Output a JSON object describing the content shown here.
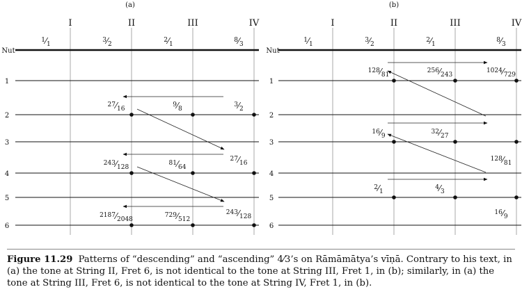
{
  "panels": [
    {
      "label": "(a)",
      "strings": [
        "I",
        "II",
        "III",
        "IV"
      ],
      "open_ratios": [
        "1/1",
        "3/2",
        "2/1",
        "8/3"
      ],
      "frets": [
        "Nut",
        "1",
        "2",
        "3",
        "4",
        "5",
        "6"
      ],
      "tones": [
        {
          "text": "27/16",
          "string": 2,
          "fret": 2
        },
        {
          "text": "9/8",
          "string": 3,
          "fret": 2
        },
        {
          "text": "3/2",
          "string": 4,
          "fret": 2
        },
        {
          "text": "27/16",
          "string": 4,
          "fret": 4,
          "note": "label above fret 3"
        },
        {
          "text": "243/128",
          "string": 2,
          "fret": 4
        },
        {
          "text": "81/64",
          "string": 3,
          "fret": 4
        },
        {
          "text": "243/128",
          "string": 4,
          "fret": 6,
          "note": "label above fret 5"
        },
        {
          "text": "2187/2048",
          "string": 2,
          "fret": 6
        },
        {
          "text": "729/512",
          "string": 3,
          "fret": 6
        }
      ]
    },
    {
      "label": "(b)",
      "strings": [
        "I",
        "II",
        "III",
        "IV"
      ],
      "open_ratios": [
        "1/1",
        "3/2",
        "2/1",
        "8/3"
      ],
      "frets": [
        "Nut",
        "1",
        "2",
        "3",
        "4",
        "5",
        "6"
      ],
      "tones": [
        {
          "text": "128/81",
          "string": 2,
          "fret": 1
        },
        {
          "text": "256/243",
          "string": 3,
          "fret": 1
        },
        {
          "text": "1024/729",
          "string": 4,
          "fret": 1
        },
        {
          "text": "128/81",
          "string": 4,
          "fret": 3,
          "note": "label above fret 3"
        },
        {
          "text": "16/9",
          "string": 2,
          "fret": 3
        },
        {
          "text": "32/27",
          "string": 3,
          "fret": 3
        },
        {
          "text": "16/9",
          "string": 4,
          "fret": 5,
          "note": "label above fret 5"
        },
        {
          "text": "2/1",
          "string": 2,
          "fret": 5
        },
        {
          "text": "4/3",
          "string": 3,
          "fret": 5
        }
      ]
    }
  ],
  "caption": {
    "figure": "Figure 11.29",
    "text": "Patterns of “descending” and “ascending” 4⁄3’s on Rāmāmātya’s vīṇā. Contrary to his text, in (a) the tone at String II, Fret 6, is not identical to the tone at String III, Fret 1, in (b); similarly, in (a) the tone at String III, Fret 6, is not identical to the tone at String IV, Fret 1, in (b)."
  }
}
